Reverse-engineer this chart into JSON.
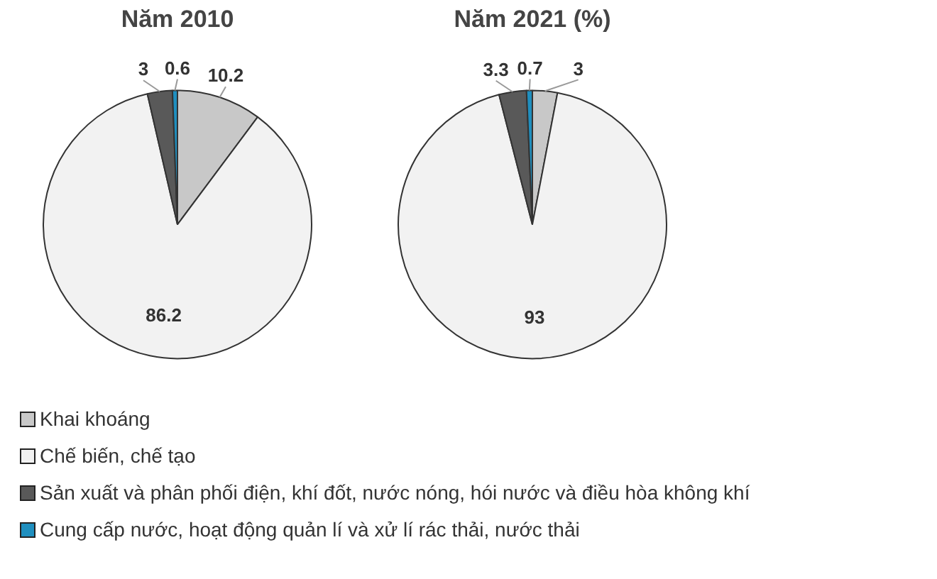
{
  "chart_data": [
    {
      "type": "pie",
      "title": "Năm 2010",
      "categories": [
        "Khai khoáng",
        "Chế biến, chế tạo",
        "Sản xuất và phân phối điện, khí đốt, nước nóng, hói nước và điều hòa không khí",
        "Cung cấp nước, hoạt động quản lí và xử lí rác thải, nước thải"
      ],
      "values": [
        10.2,
        86.2,
        3,
        0.6
      ],
      "colors": [
        "#c8c8c8",
        "#f2f2f2",
        "#595959",
        "#1f8fbf"
      ],
      "data_labels": true,
      "legend": "bottom"
    },
    {
      "type": "pie",
      "title": "Năm 2021 (%)",
      "categories": [
        null,
        null,
        null,
        null
      ],
      "values": [
        3,
        93,
        3.3,
        0.7
      ],
      "colors": [
        "#c8c8c8",
        "#f2f2f2",
        "#595959",
        "#1f8fbf"
      ],
      "data_labels": true
    }
  ]
}
